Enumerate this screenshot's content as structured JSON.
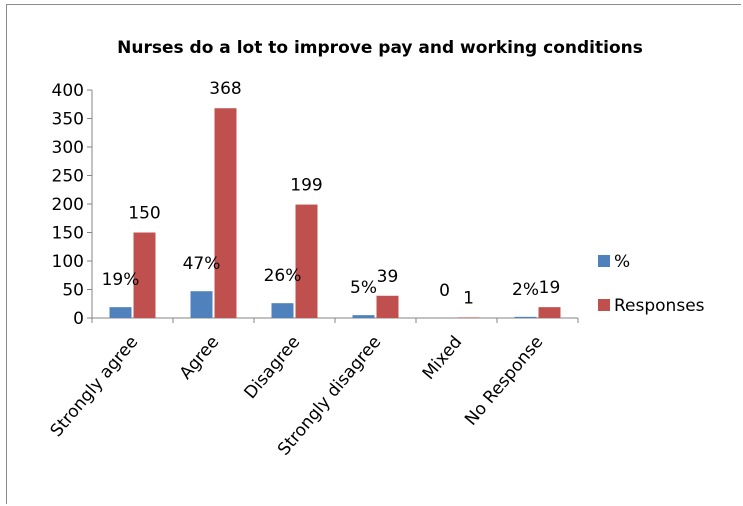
{
  "chart_data": {
    "type": "bar",
    "title": "Nurses do a lot to improve pay and working conditions",
    "categories": [
      "Strongly agree",
      "Agree",
      "Disagree",
      "Strongly disagree",
      "Mixed",
      "No Response"
    ],
    "series": [
      {
        "name": "%",
        "values": [
          19,
          47,
          26,
          5,
          0,
          2
        ],
        "labels": [
          "19%",
          "47%",
          "26%",
          "5%",
          "0",
          "2%"
        ],
        "color": "#4f81bd"
      },
      {
        "name": "Responses",
        "values": [
          150,
          368,
          199,
          39,
          1,
          19
        ],
        "labels": [
          "150",
          "368",
          "199",
          "39",
          "1",
          "19"
        ],
        "color": "#c0504d"
      }
    ],
    "yticks": [
      "0",
      "50",
      "100",
      "150",
      "200",
      "250",
      "300",
      "350",
      "400"
    ],
    "ylim": [
      0,
      400
    ],
    "grid": false,
    "legend": "right"
  }
}
